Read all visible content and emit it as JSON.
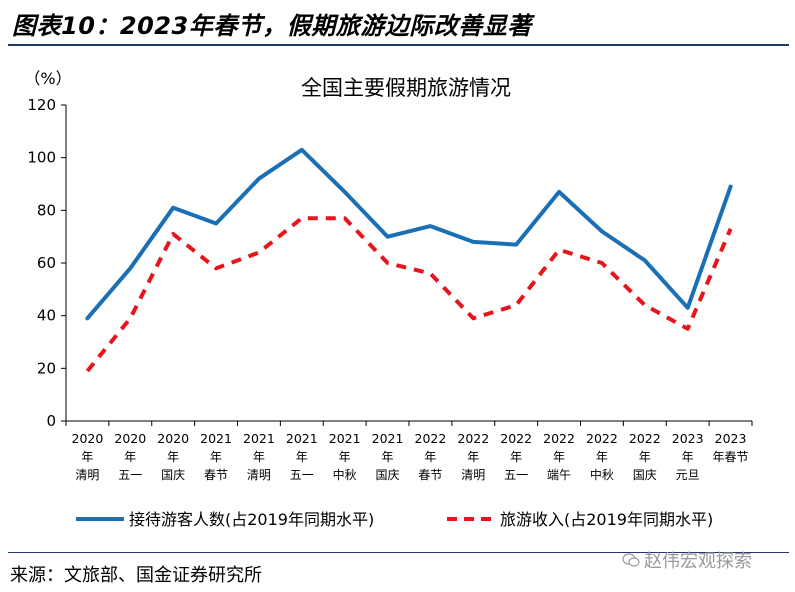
{
  "figure_title": "图表10：2023年春节，假期旅游边际改善显著",
  "source": "来源：文旅部、国金证券研究所",
  "watermark": "赵伟宏观探索",
  "colors": {
    "series_1": "#1a6fb5",
    "series_2": "#e8141b",
    "rule": "#1f3a6b"
  },
  "chart_data": {
    "type": "line",
    "title": "全国主要假期旅游情况",
    "ylabel": "（%）",
    "ylim": [
      0,
      120
    ],
    "yticks": [
      0,
      20,
      40,
      60,
      80,
      100,
      120
    ],
    "grid": false,
    "legend_position": "bottom",
    "categories": [
      [
        "2020",
        "年",
        "清明"
      ],
      [
        "2020",
        "年",
        "五一"
      ],
      [
        "2020",
        "年",
        "国庆"
      ],
      [
        "2021",
        "年",
        "春节"
      ],
      [
        "2021",
        "年",
        "清明"
      ],
      [
        "2021",
        "年",
        "五一"
      ],
      [
        "2021",
        "年",
        "中秋"
      ],
      [
        "2021",
        "年",
        "国庆"
      ],
      [
        "2022",
        "年",
        "春节"
      ],
      [
        "2022",
        "年",
        "清明"
      ],
      [
        "2022",
        "年",
        "五一"
      ],
      [
        "2022",
        "年",
        "端午"
      ],
      [
        "2022",
        "年",
        "中秋"
      ],
      [
        "2022",
        "年",
        "国庆"
      ],
      [
        "2023",
        "年",
        "元旦"
      ],
      [
        "2023",
        "年春节",
        ""
      ]
    ],
    "series": [
      {
        "name": "接待游客人数(占2019年同期水平)",
        "style": "solid",
        "values": [
          39,
          58,
          81,
          75,
          92,
          103,
          87,
          70,
          74,
          68,
          67,
          87,
          72,
          61,
          43,
          89
        ]
      },
      {
        "name": "旅游收入(占2019年同期水平)",
        "style": "dashed",
        "values": [
          19,
          39,
          71,
          58,
          64,
          77,
          77,
          60,
          56,
          39,
          44,
          65,
          60,
          44,
          35,
          73
        ]
      }
    ]
  }
}
